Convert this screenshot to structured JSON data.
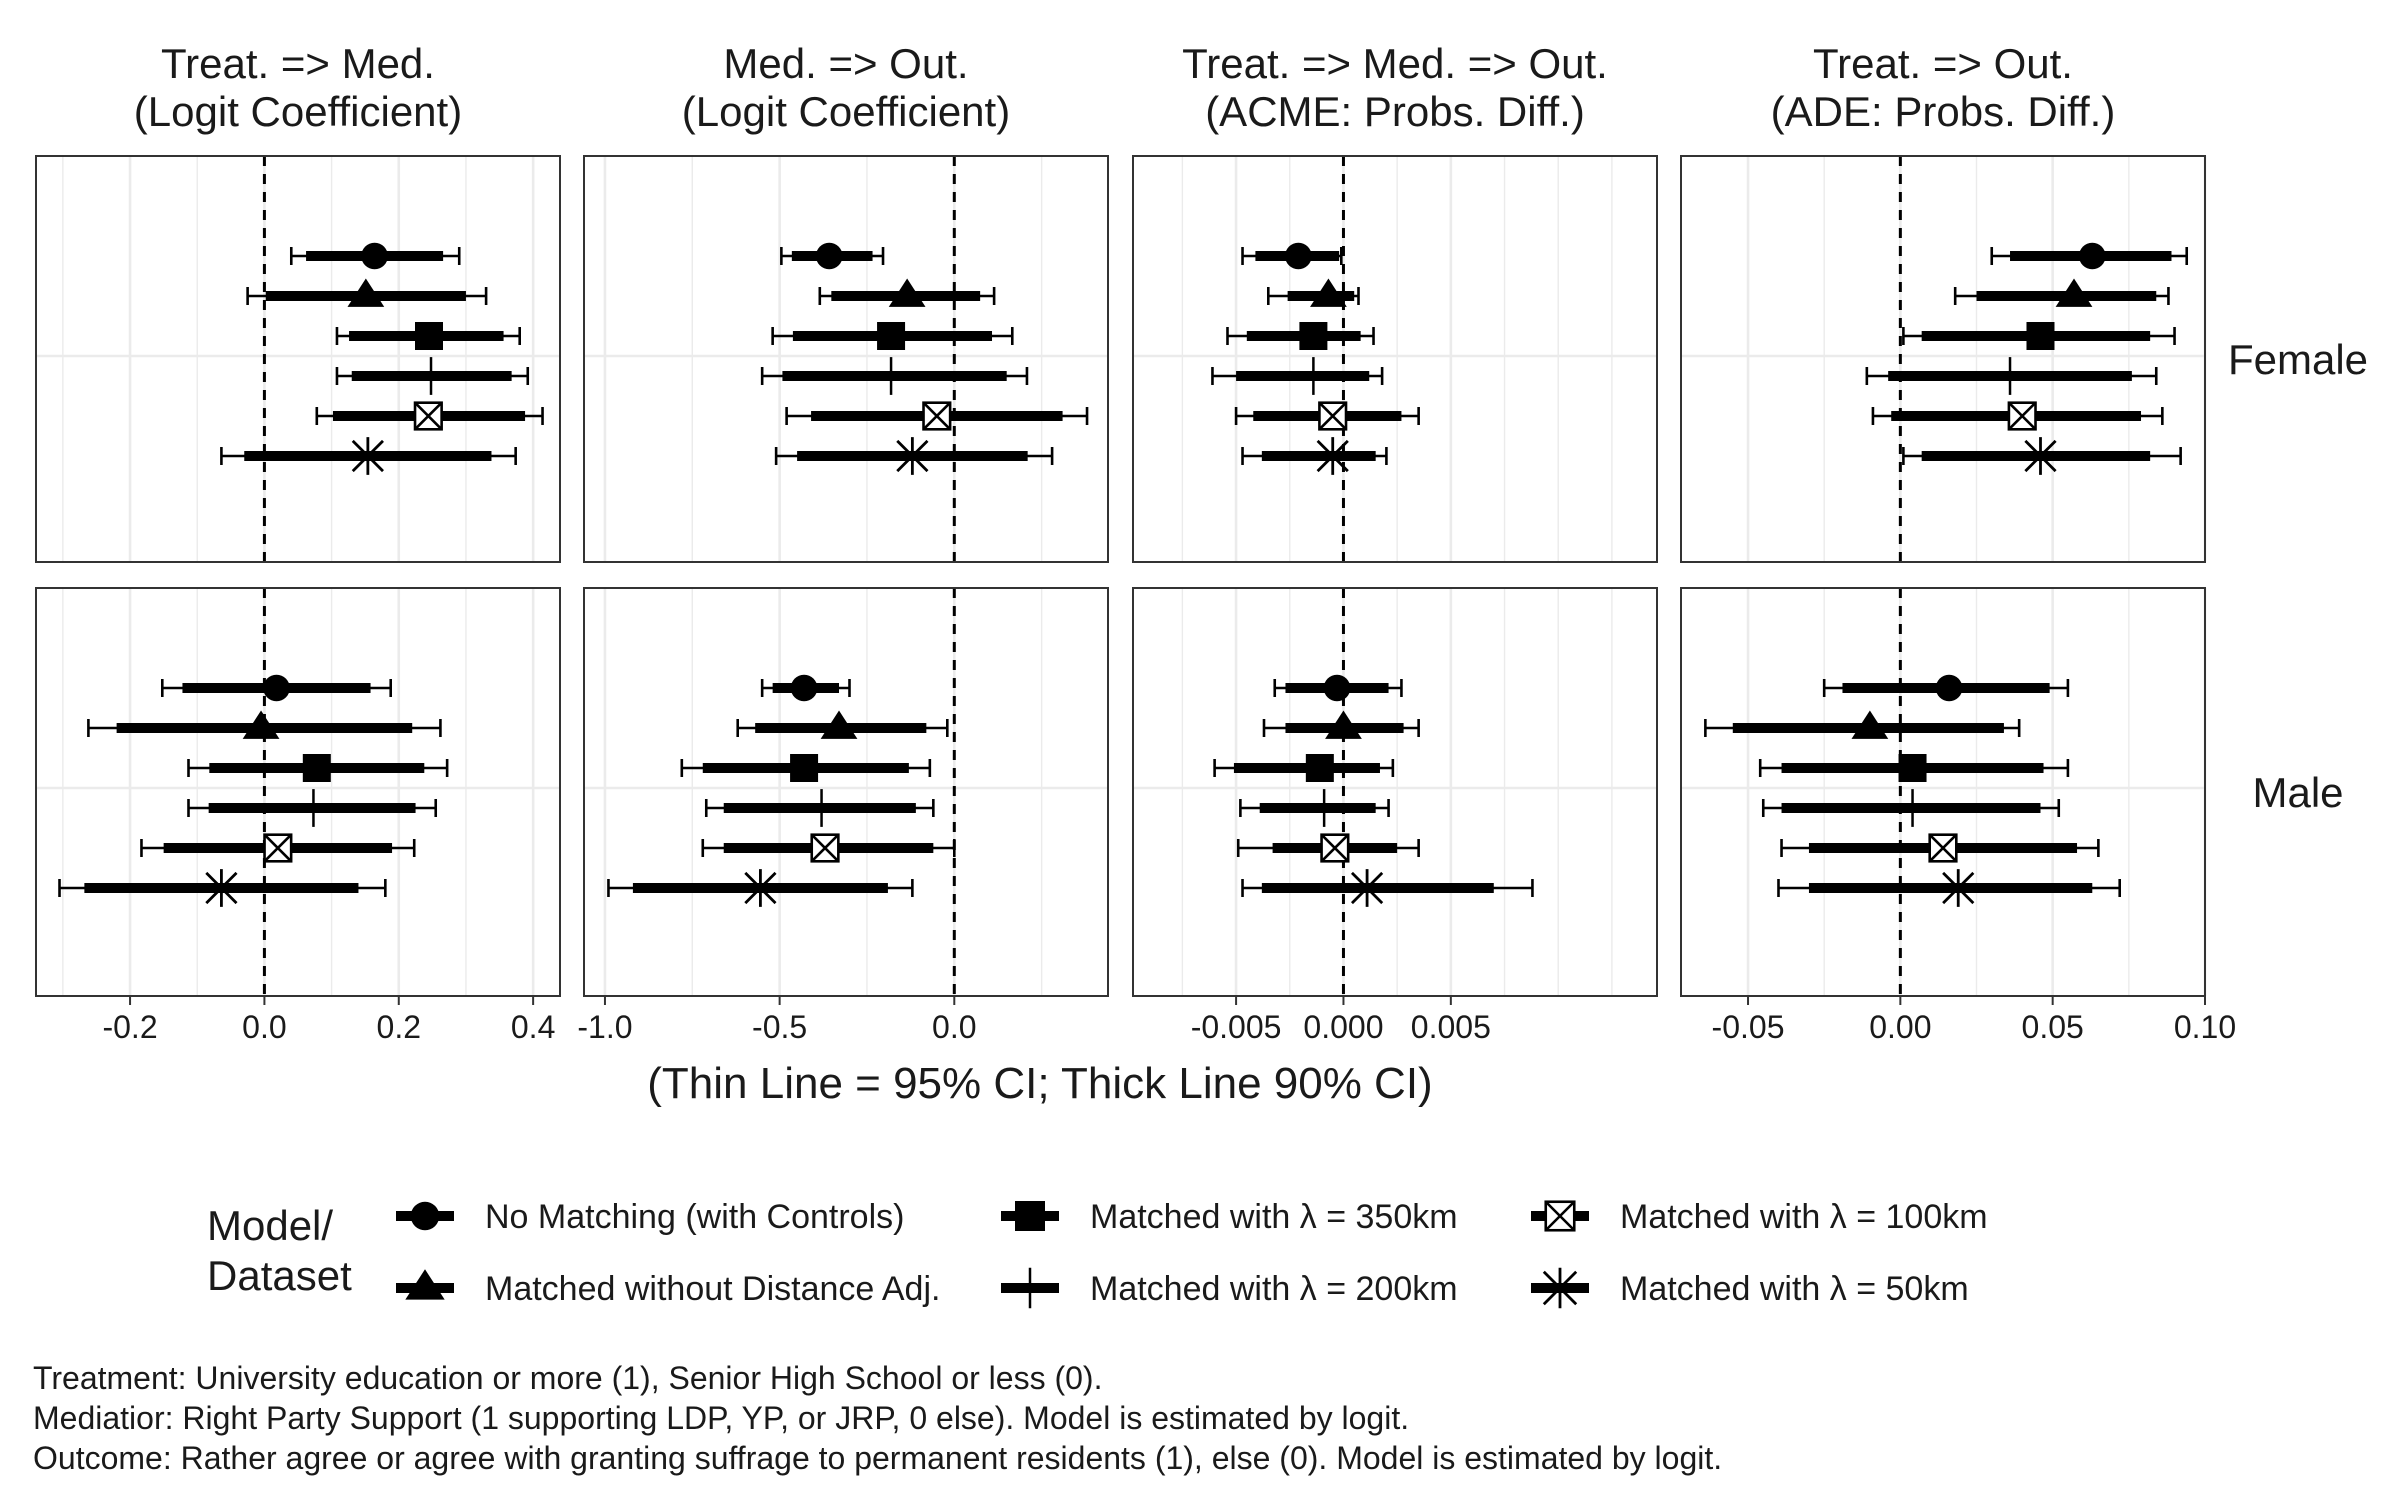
{
  "x_axis_caption": "(Thin Line = 95% CI; Thick Line 90% CI)",
  "legend": {
    "title_lines": [
      "Model/",
      "Dataset"
    ],
    "items": [
      {
        "label": "No Matching (with Controls)",
        "shape": "circle"
      },
      {
        "label": "Matched without Distance Adj.",
        "shape": "triangle"
      },
      {
        "label": "Matched with  λ  = 350km",
        "shape": "square"
      },
      {
        "label": "Matched with  λ  = 200km",
        "shape": "plus"
      },
      {
        "label": "Matched with  λ  = 100km",
        "shape": "crossed-square"
      },
      {
        "label": "Matched with  λ  = 50km",
        "shape": "asterisk"
      }
    ]
  },
  "notes": [
    "Treatment: University education or more (1), Senior High School or less (0).",
    "Mediatior: Right Party Support (1 supporting LDP, YP, or JRP, 0 else). Model is estimated by logit.",
    "Outcome: Rather agree or agree with granting suffrage to permanent residents (1), else (0). Model is estimated by logit."
  ],
  "chart_data": {
    "type": "forest",
    "row_labels": [
      "Female",
      "Male"
    ],
    "columns": [
      {
        "title_lines": [
          "Treat. => Med.",
          "(Logit Coefficient)"
        ],
        "xlim": [
          -0.34,
          0.44
        ],
        "ticks": [
          -0.2,
          0.0,
          0.2,
          0.4
        ],
        "tick_labels": [
          "-0.2",
          "0.0",
          "0.2",
          "0.4"
        ],
        "ref_line": 0
      },
      {
        "title_lines": [
          "Med. => Out.",
          "(Logit Coefficient)"
        ],
        "xlim": [
          -1.06,
          0.44
        ],
        "ticks": [
          -1.0,
          -0.5,
          0.0
        ],
        "tick_labels": [
          "-1.0",
          "-0.5",
          "0.0"
        ],
        "ref_line": 0
      },
      {
        "title_lines": [
          "Treat. => Med. => Out.",
          "(ACME: Probs. Diff.)"
        ],
        "xlim": [
          -0.0098,
          0.0146
        ],
        "ticks": [
          -0.005,
          0.0,
          0.005
        ],
        "tick_labels": [
          "-0.005",
          "0.000",
          "0.005"
        ],
        "ref_line": 0
      },
      {
        "title_lines": [
          "Treat. =>  Out.",
          "(ADE: Probs. Diff.)"
        ],
        "xlim": [
          -0.072,
          0.1
        ],
        "ticks": [
          -0.05,
          0.0,
          0.05,
          0.1
        ],
        "tick_labels": [
          "-0.05",
          "0.00",
          "0.05",
          "0.10"
        ],
        "ref_line": 0
      }
    ],
    "series": [
      "No Matching (with Controls)",
      "Matched without Distance Adj.",
      "Matched with λ = 350km",
      "Matched with λ = 200km",
      "Matched with λ = 100km",
      "Matched with λ = 50km"
    ],
    "estimates": [
      [
        [
          [
            0.164,
            0.062,
            0.266,
            0.04,
            0.29
          ],
          [
            0.151,
            0.002,
            0.3,
            -0.025,
            0.33
          ],
          [
            0.245,
            0.126,
            0.356,
            0.108,
            0.38
          ],
          [
            0.248,
            0.13,
            0.368,
            0.108,
            0.392
          ],
          [
            0.244,
            0.102,
            0.388,
            0.078,
            0.414
          ],
          [
            0.154,
            -0.03,
            0.338,
            -0.064,
            0.374
          ]
        ],
        [
          [
            -0.358,
            -0.465,
            -0.234,
            -0.495,
            -0.204
          ],
          [
            -0.135,
            -0.352,
            0.074,
            -0.385,
            0.114
          ],
          [
            -0.181,
            -0.462,
            0.108,
            -0.52,
            0.166
          ],
          [
            -0.181,
            -0.492,
            0.15,
            -0.55,
            0.208
          ],
          [
            -0.05,
            -0.41,
            0.31,
            -0.48,
            0.38
          ],
          [
            -0.12,
            -0.45,
            0.21,
            -0.51,
            0.28
          ]
        ],
        [
          [
            -0.0021,
            -0.0041,
            -0.0002,
            -0.0047,
            -0.0001
          ],
          [
            -0.0007,
            -0.0026,
            0.0005,
            -0.0035,
            0.0007
          ],
          [
            -0.0014,
            -0.0045,
            0.0008,
            -0.0054,
            0.0014
          ],
          [
            -0.0014,
            -0.005,
            0.0012,
            -0.0061,
            0.0018
          ],
          [
            -0.0005,
            -0.0042,
            0.0027,
            -0.005,
            0.0035
          ],
          [
            -0.0005,
            -0.0038,
            0.0015,
            -0.0047,
            0.002
          ]
        ],
        [
          [
            0.063,
            0.036,
            0.089,
            0.03,
            0.094
          ],
          [
            0.057,
            0.025,
            0.084,
            0.018,
            0.088
          ],
          [
            0.046,
            0.007,
            0.082,
            0.001,
            0.09
          ],
          [
            0.036,
            -0.004,
            0.076,
            -0.011,
            0.084
          ],
          [
            0.04,
            -0.003,
            0.079,
            -0.009,
            0.086
          ],
          [
            0.046,
            0.007,
            0.082,
            0.001,
            0.092
          ]
        ]
      ],
      [
        [
          [
            0.018,
            -0.122,
            0.158,
            -0.152,
            0.188
          ],
          [
            -0.005,
            -0.22,
            0.22,
            -0.262,
            0.262
          ],
          [
            0.078,
            -0.082,
            0.238,
            -0.113,
            0.272
          ],
          [
            0.073,
            -0.083,
            0.225,
            -0.113,
            0.255
          ],
          [
            0.02,
            -0.15,
            0.19,
            -0.183,
            0.223
          ],
          [
            -0.064,
            -0.268,
            0.14,
            -0.305,
            0.18
          ]
        ],
        [
          [
            -0.43,
            -0.52,
            -0.33,
            -0.55,
            -0.3
          ],
          [
            -0.33,
            -0.57,
            -0.08,
            -0.62,
            -0.02
          ],
          [
            -0.43,
            -0.72,
            -0.13,
            -0.78,
            -0.07
          ],
          [
            -0.38,
            -0.66,
            -0.11,
            -0.71,
            -0.06
          ],
          [
            -0.37,
            -0.66,
            -0.06,
            -0.72,
            0.0
          ],
          [
            -0.555,
            -0.92,
            -0.19,
            -0.99,
            -0.12
          ]
        ],
        [
          [
            -0.0003,
            -0.0027,
            0.0021,
            -0.0032,
            0.0027
          ],
          [
            0.0,
            -0.0027,
            0.0028,
            -0.0037,
            0.0035
          ],
          [
            -0.0011,
            -0.0051,
            0.0017,
            -0.006,
            0.0023
          ],
          [
            -0.0009,
            -0.0039,
            0.0015,
            -0.0048,
            0.0021
          ],
          [
            -0.0004,
            -0.0033,
            0.0025,
            -0.0049,
            0.0035
          ],
          [
            0.0011,
            -0.0038,
            0.007,
            -0.0047,
            0.0088
          ]
        ],
        [
          [
            0.016,
            -0.019,
            0.049,
            -0.025,
            0.055
          ],
          [
            -0.01,
            -0.055,
            0.034,
            -0.064,
            0.039
          ],
          [
            0.004,
            -0.039,
            0.047,
            -0.046,
            0.055
          ],
          [
            0.004,
            -0.039,
            0.046,
            -0.045,
            0.052
          ],
          [
            0.014,
            -0.03,
            0.058,
            -0.039,
            0.065
          ],
          [
            0.019,
            -0.03,
            0.063,
            -0.04,
            0.072
          ]
        ]
      ]
    ],
    "estimate_fields": [
      "estimate",
      "ci90_low",
      "ci90_high",
      "ci95_low",
      "ci95_high"
    ]
  }
}
